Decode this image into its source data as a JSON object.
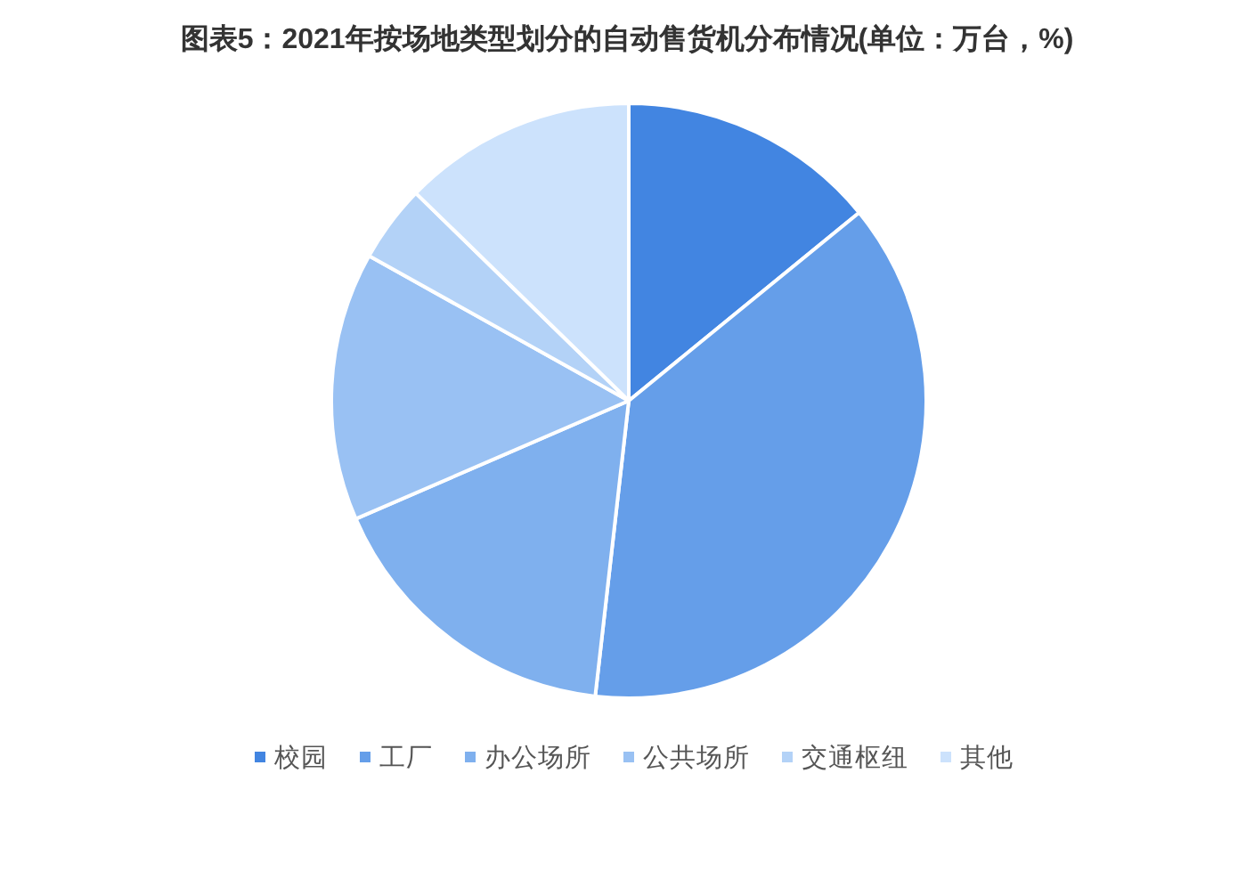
{
  "chart_data": {
    "type": "pie",
    "title": "图表5：2021年按场地类型划分的自动售货机分布情况(单位：万台，%)",
    "categories": [
      "校园",
      "工厂",
      "办公场所",
      "公共场所",
      "交通枢纽",
      "其他"
    ],
    "values": [
      14.1,
      37.7,
      16.7,
      14.6,
      4.2,
      12.7
    ],
    "colors": [
      "#4285e1",
      "#659ee9",
      "#7fb0ee",
      "#99c1f3",
      "#b3d2f7",
      "#cce2fc"
    ],
    "legend": "bottom"
  }
}
